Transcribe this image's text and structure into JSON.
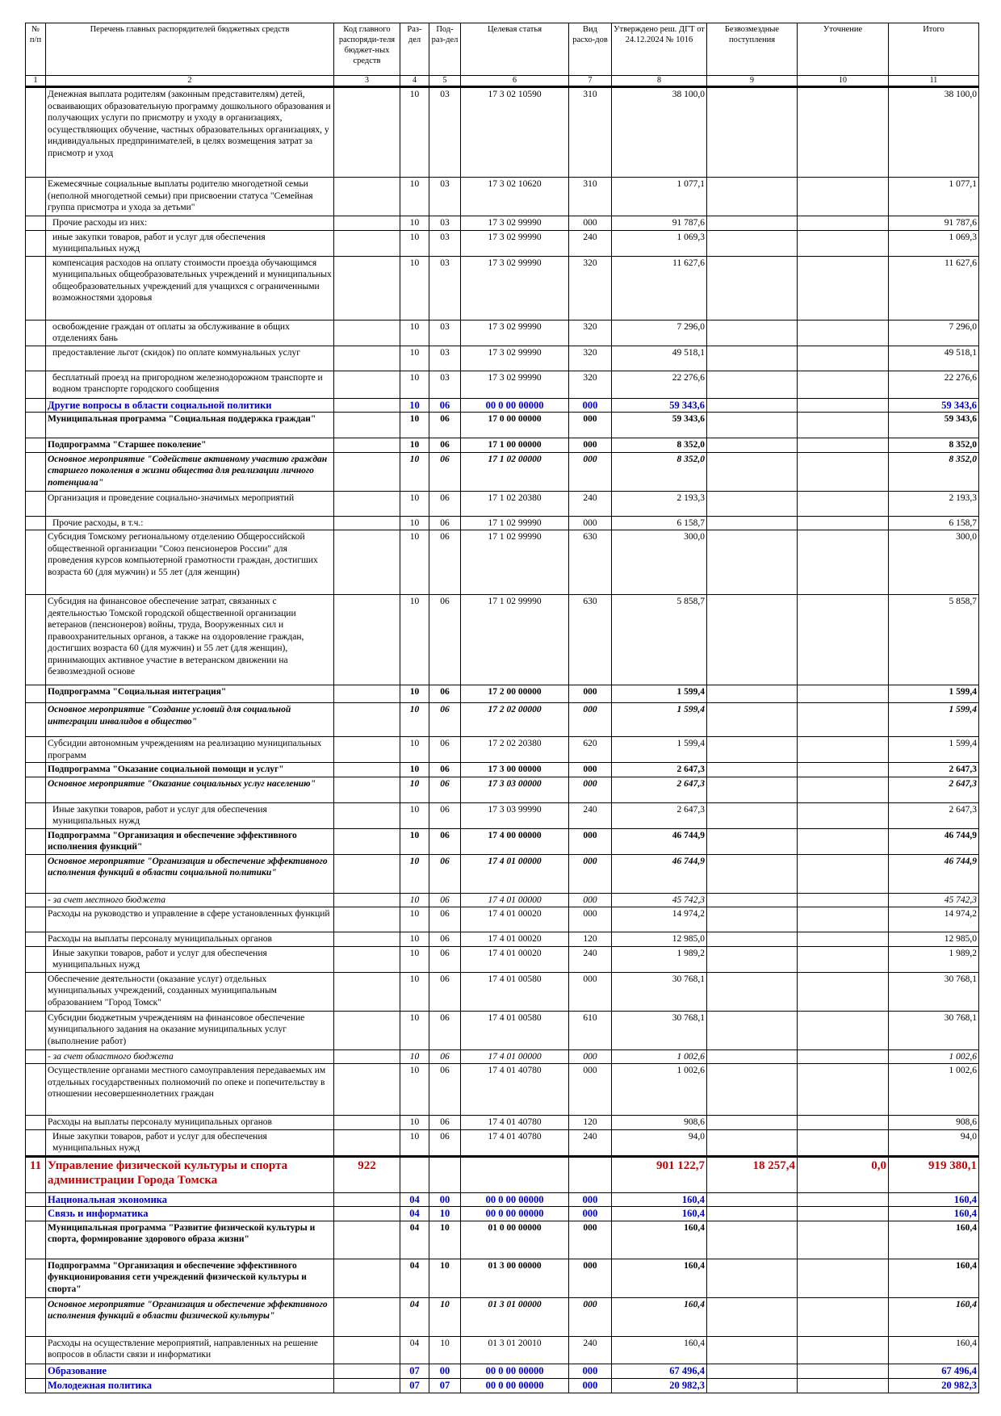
{
  "table": {
    "header": [
      "№ п/п",
      "Перечень главных распорядителей бюджетных средств",
      "Код главного распоряди-теля бюджет-ных средств",
      "Раз-дел",
      "Под-раз-дел",
      "Целевая статья",
      "Вид расхо-дов",
      "Утверждено реш. ДГТ от 24.12.2024 № 1016",
      "Безвозмездные поступления",
      "Уточнение",
      "Итого"
    ],
    "column_numbers": [
      "1",
      "2",
      "3",
      "4",
      "5",
      "6",
      "7",
      "8",
      "9",
      "10",
      "11"
    ],
    "rows": [
      [
        null,
        "Денежная выплата родителям (законным представителям) детей, осваивающих образовательную программу дошкольного образования и получающих услуги по присмотру и уходу в организациях, осуществляющих обучение, частных образовательных организациях, у индивидуальных предпринимателей, в целях возмещения затрат за присмотр и уход",
        null,
        "10",
        "03",
        "17 3 02 10590",
        "310",
        "38 100,0",
        null,
        null,
        "38 100,0"
      ],
      [
        null,
        "Ежемесячные социальные выплаты родителю многодетной семьи (неполной многодетной семьи) при присвоении статуса \"Семейная группа присмотра и ухода за детьми\"",
        null,
        "10",
        "03",
        "17 3 02 10620",
        "310",
        "1 077,1",
        null,
        null,
        "1 077,1"
      ],
      [
        null,
        "Прочие расходы из них:",
        null,
        "10",
        "03",
        "17 3 02 99990",
        "000",
        "91 787,6",
        null,
        null,
        "91 787,6"
      ],
      [
        null,
        "иные закупки товаров, работ и услуг для обеспечения муниципальных нужд",
        null,
        "10",
        "03",
        "17 3 02 99990",
        "240",
        "1 069,3",
        null,
        null,
        "1 069,3"
      ],
      [
        null,
        "компенсация расходов на оплату стоимости проезда обучающимся муниципальных общеобразовательных учреждений и муниципальных общеобразовательных учреждений для учащихся с ограниченными возможностями здоровья",
        null,
        "10",
        "03",
        "17 3 02 99990",
        "320",
        "11 627,6",
        null,
        null,
        "11 627,6"
      ],
      [
        null,
        "освобождение граждан от оплаты за обслуживание в общих отделениях бань",
        null,
        "10",
        "03",
        "17 3 02 99990",
        "320",
        "7 296,0",
        null,
        null,
        "7 296,0"
      ],
      [
        null,
        "предоставление льгот (скидок) по оплате коммунальных услуг",
        null,
        "10",
        "03",
        "17 3 02 99990",
        "320",
        "49 518,1",
        null,
        null,
        "49 518,1"
      ],
      [
        null,
        "бесплатный проезд на пригородном железнодорожном транспорте и водном транспорте городского сообщения",
        null,
        "10",
        "03",
        "17 3 02 99990",
        "320",
        "22 276,6",
        null,
        null,
        "22 276,6"
      ],
      [
        null,
        "Другие вопросы в области социальной политики",
        null,
        "10",
        "06",
        "00 0 00 00000",
        "000",
        "59 343,6",
        null,
        null,
        "59 343,6"
      ],
      [
        null,
        "Муниципальная программа \"Социальная поддержка граждан\"",
        null,
        "10",
        "06",
        "17 0 00 00000",
        "000",
        "59 343,6",
        null,
        null,
        "59 343,6"
      ],
      [
        null,
        "Подпрограмма \"Старшее поколение\"",
        null,
        "10",
        "06",
        "17 1 00 00000",
        "000",
        "8 352,0",
        null,
        null,
        "8 352,0"
      ],
      [
        null,
        "Основное мероприятие \"Содействие активному участию граждан старшего поколения в жизни общества для реализации личного потенциала\"",
        null,
        "10",
        "06",
        "17 1 02 00000",
        "000",
        "8 352,0",
        null,
        null,
        "8 352,0"
      ],
      [
        null,
        "Организация и проведение социально-значимых мероприятий",
        null,
        "10",
        "06",
        "17 1 02 20380",
        "240",
        "2 193,3",
        null,
        null,
        "2 193,3"
      ],
      [
        null,
        "Прочие расходы, в т.ч.:",
        null,
        "10",
        "06",
        "17 1 02 99990",
        "000",
        "6 158,7",
        null,
        null,
        "6 158,7"
      ],
      [
        null,
        "Субсидия Томскому региональному отделению Общероссийской общественной организации \"Союз пенсионеров России\" для проведения курсов компьютерной грамотности граждан, достигших возраста 60 (для мужчин) и 55 лет (для женщин)",
        null,
        "10",
        "06",
        "17 1 02 99990",
        "630",
        "300,0",
        null,
        null,
        "300,0"
      ],
      [
        null,
        "Субсидия на финансовое обеспечение затрат, связанных с деятельностью Томской городской общественной организации ветеранов (пенсионеров) войны, труда, Вооруженных сил и правоохранительных органов, а также на оздоровление граждан, достигших возраста 60 (для мужчин) и 55 лет (для женщин), принимающих активное участие в ветеранском движении на безвозмездной основе",
        null,
        "10",
        "06",
        "17 1 02 99990",
        "630",
        "5 858,7",
        null,
        null,
        "5 858,7"
      ],
      [
        null,
        "Подпрограмма \"Социальная интеграция\"",
        null,
        "10",
        "06",
        "17 2 00 00000",
        "000",
        "1 599,4",
        null,
        null,
        "1 599,4"
      ],
      [
        null,
        "Основное мероприятие \"Создание условий для социальной интеграции инвалидов в общество\"",
        null,
        "10",
        "06",
        "17 2 02 00000",
        "000",
        "1 599,4",
        null,
        null,
        "1 599,4"
      ],
      [
        null,
        "Субсидии автономным учреждениям на реализацию муниципальных программ",
        null,
        "10",
        "06",
        "17 2 02 20380",
        "620",
        "1 599,4",
        null,
        null,
        "1 599,4"
      ],
      [
        null,
        "Подпрограмма \"Оказание социальной помощи и услуг\"",
        null,
        "10",
        "06",
        "17 3 00 00000",
        "000",
        "2 647,3",
        null,
        null,
        "2 647,3"
      ],
      [
        null,
        "Основное мероприятие \"Оказание социальных услуг населению\"",
        null,
        "10",
        "06",
        "17 3 03 00000",
        "000",
        "2 647,3",
        null,
        null,
        "2 647,3"
      ],
      [
        null,
        "Иные закупки товаров, работ и услуг для обеспечения муниципальных нужд",
        null,
        "10",
        "06",
        "17 3 03 99990",
        "240",
        "2 647,3",
        null,
        null,
        "2 647,3"
      ],
      [
        null,
        "Подпрограмма \"Организация и обеспечение эффективного исполнения функций\"",
        null,
        "10",
        "06",
        "17 4 00 00000",
        "000",
        "46 744,9",
        null,
        null,
        "46 744,9"
      ],
      [
        null,
        "Основное мероприятие \"Организация и обеспечение эффективного исполнения функций в области социальной политики\"",
        null,
        "10",
        "06",
        "17 4 01 00000",
        "000",
        "46 744,9",
        null,
        null,
        "46 744,9"
      ],
      [
        null,
        "- за счет местного бюджета",
        null,
        "10",
        "06",
        "17 4 01 00000",
        "000",
        "45 742,3",
        null,
        null,
        "45 742,3"
      ],
      [
        null,
        "Расходы на руководство и управление в сфере установленных функций",
        null,
        "10",
        "06",
        "17 4 01 00020",
        "000",
        "14 974,2",
        null,
        null,
        "14 974,2"
      ],
      [
        null,
        "Расходы на выплаты персоналу муниципальных органов",
        null,
        "10",
        "06",
        "17 4 01 00020",
        "120",
        "12 985,0",
        null,
        null,
        "12 985,0"
      ],
      [
        null,
        "Иные закупки товаров, работ и услуг для обеспечения муниципальных нужд",
        null,
        "10",
        "06",
        "17 4 01 00020",
        "240",
        "1 989,2",
        null,
        null,
        "1 989,2"
      ],
      [
        null,
        "Обеспечение деятельности (оказание услуг) отдельных муниципальных учреждений, созданных муниципальным образованием \"Город Томск\"",
        null,
        "10",
        "06",
        "17 4 01 00580",
        "000",
        "30 768,1",
        null,
        null,
        "30 768,1"
      ],
      [
        null,
        "Субсидии бюджетным учреждениям на финансовое обеспечение муниципального задания на оказание муниципальных услуг (выполнение работ)",
        null,
        "10",
        "06",
        "17 4 01 00580",
        "610",
        "30 768,1",
        null,
        null,
        "30 768,1"
      ],
      [
        null,
        "- за счет областного бюджета",
        null,
        "10",
        "06",
        "17 4 01 00000",
        "000",
        "1 002,6",
        null,
        null,
        "1 002,6"
      ],
      [
        null,
        "Осуществление органами местного самоуправления передаваемых им отдельных государственных полномочий по опеке и попечительству в отношении несовершеннолетних граждан",
        null,
        "10",
        "06",
        "17 4 01 40780",
        "000",
        "1 002,6",
        null,
        null,
        "1 002,6"
      ],
      [
        null,
        "Расходы на выплаты персоналу муниципальных органов",
        null,
        "10",
        "06",
        "17 4 01 40780",
        "120",
        "908,6",
        null,
        null,
        "908,6"
      ],
      [
        null,
        "Иные закупки товаров, работ и услуг для обеспечения муниципальных нужд",
        null,
        "10",
        "06",
        "17 4 01 40780",
        "240",
        "94,0",
        null,
        null,
        "94,0"
      ],
      [
        "11",
        "Управление физической культуры и спорта администрации Города Томска",
        "922",
        null,
        null,
        null,
        null,
        "901 122,7",
        "18 257,4",
        "0,0",
        "919 380,1"
      ],
      [
        null,
        "Национальная экономика",
        null,
        "04",
        "00",
        "00 0 00 00000",
        "000",
        "160,4",
        null,
        null,
        "160,4"
      ],
      [
        null,
        "Связь и информатика",
        null,
        "04",
        "10",
        "00 0 00 00000",
        "000",
        "160,4",
        null,
        null,
        "160,4"
      ],
      [
        null,
        "Муниципальная программа \"Развитие физической культуры и спорта, формирование здорового образа жизни\"",
        null,
        "04",
        "10",
        "01 0 00 00000",
        "000",
        "160,4",
        null,
        null,
        "160,4"
      ],
      [
        null,
        "Подпрограмма \"Организация и обеспечение эффективного функционирования сети учреждений физической культуры и спорта\"",
        null,
        "04",
        "10",
        "01 3 00 00000",
        "000",
        "160,4",
        null,
        null,
        "160,4"
      ],
      [
        null,
        "Основное мероприятие \"Организация и обеспечение эффективного исполнения функций в области физической культуры\"",
        null,
        "04",
        "10",
        "01 3 01 00000",
        "000",
        "160,4",
        null,
        null,
        "160,4"
      ],
      [
        null,
        "Расходы на осуществление мероприятий, направленных на решение вопросов в области связи и информатики",
        null,
        "04",
        "10",
        "01 3 01 20010",
        "240",
        "160,4",
        null,
        null,
        "160,4"
      ],
      [
        null,
        "Образование",
        null,
        "07",
        "00",
        "00 0 00 00000",
        "000",
        "67 496,4",
        null,
        null,
        "67 496,4"
      ],
      [
        null,
        "Молодежная политика",
        null,
        "07",
        "07",
        "00 0 00 00000",
        "000",
        "20 982,3",
        null,
        null,
        "20 982,3"
      ]
    ]
  }
}
